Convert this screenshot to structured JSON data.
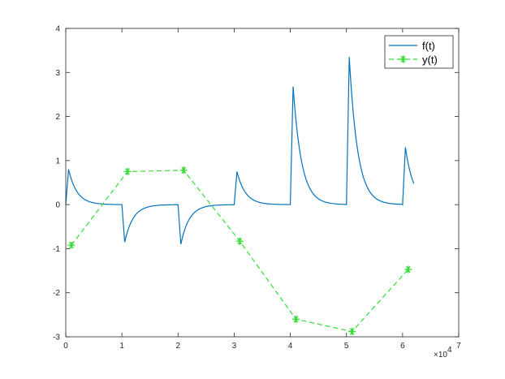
{
  "chart_data": {
    "type": "line",
    "xlim": [
      0,
      70000
    ],
    "ylim": [
      -3,
      4
    ],
    "x_ticks": [
      0,
      10000,
      20000,
      30000,
      40000,
      50000,
      60000,
      70000
    ],
    "x_tick_labels": [
      "0",
      "1",
      "2",
      "3",
      "4",
      "5",
      "6",
      "7"
    ],
    "x_exponent_base": "×10",
    "x_exponent_power": "4",
    "y_ticks": [
      -3,
      -2,
      -1,
      0,
      1,
      2,
      3,
      4
    ],
    "y_tick_labels": [
      "-3",
      "-2",
      "-1",
      "0",
      "1",
      "2",
      "3",
      "4"
    ],
    "grid": false,
    "legend_position": "top-right",
    "series": [
      {
        "name": "f(t)",
        "color": "#0072bd",
        "style": "solid",
        "marker": "none",
        "pulses": [
          {
            "t0": 500,
            "peak": 0.8
          },
          {
            "t0": 10500,
            "peak": -0.85
          },
          {
            "t0": 20500,
            "peak": -0.9
          },
          {
            "t0": 30500,
            "peak": 0.75
          },
          {
            "t0": 40500,
            "peak": 2.68
          },
          {
            "t0": 50500,
            "peak": 3.35
          },
          {
            "t0": 60500,
            "peak": 1.3
          }
        ],
        "x_end": 62000,
        "y_end": 0.48
      },
      {
        "name": "y(t)",
        "color": "#33dd33",
        "style": "dashed",
        "marker": "asterisk",
        "x": [
          1000,
          11000,
          21000,
          31000,
          41000,
          51000,
          61000
        ],
        "y": [
          -0.92,
          0.75,
          0.78,
          -0.83,
          -2.6,
          -2.88,
          -1.47
        ]
      }
    ]
  }
}
